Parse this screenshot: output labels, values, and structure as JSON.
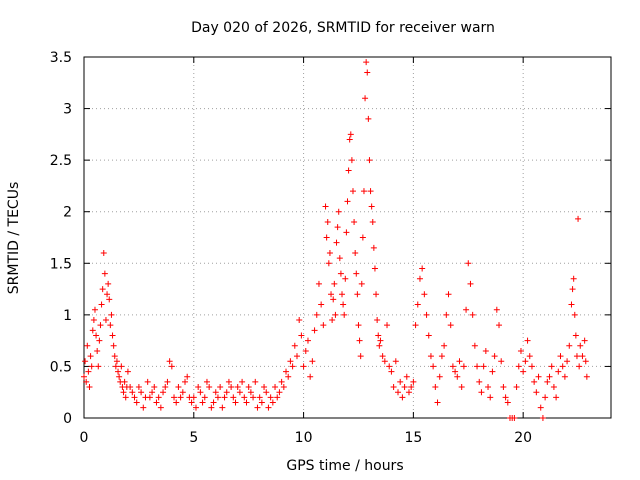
{
  "chart_data": {
    "type": "scatter",
    "title": "Day 020 of 2026, SRMTID for receiver warn",
    "xlabel": "GPS time / hours",
    "ylabel": "SRMTID / TECUs",
    "xlim": [
      0,
      24
    ],
    "ylim": [
      0,
      3.5
    ],
    "xticks": [
      0,
      5,
      10,
      15,
      20
    ],
    "xtick_labels": [
      "0",
      "5",
      "10",
      "15",
      "20"
    ],
    "yticks": [
      0,
      0.5,
      1,
      1.5,
      2,
      2.5,
      3,
      3.5
    ],
    "ytick_labels": [
      "0",
      "0.5",
      "1",
      "1.5",
      "2",
      "2.5",
      "3",
      "3.5"
    ],
    "grid": true,
    "marker": "+",
    "marker_color": "#ff0000",
    "series": [
      {
        "name": "SRMTID",
        "points": [
          [
            0.0,
            0.4
          ],
          [
            0.05,
            0.55
          ],
          [
            0.1,
            0.35
          ],
          [
            0.15,
            0.7
          ],
          [
            0.2,
            0.45
          ],
          [
            0.25,
            0.3
          ],
          [
            0.3,
            0.6
          ],
          [
            0.35,
            0.5
          ],
          [
            0.4,
            0.85
          ],
          [
            0.45,
            0.95
          ],
          [
            0.5,
            1.05
          ],
          [
            0.55,
            0.8
          ],
          [
            0.6,
            0.65
          ],
          [
            0.65,
            0.5
          ],
          [
            0.7,
            0.75
          ],
          [
            0.75,
            0.9
          ],
          [
            0.8,
            1.1
          ],
          [
            0.85,
            1.25
          ],
          [
            0.9,
            1.6
          ],
          [
            0.95,
            1.4
          ],
          [
            1.0,
            0.95
          ],
          [
            1.05,
            1.2
          ],
          [
            1.1,
            1.3
          ],
          [
            1.15,
            1.15
          ],
          [
            1.2,
            0.9
          ],
          [
            1.25,
            1.0
          ],
          [
            1.3,
            0.8
          ],
          [
            1.35,
            0.7
          ],
          [
            1.4,
            0.6
          ],
          [
            1.45,
            0.5
          ],
          [
            1.5,
            0.55
          ],
          [
            1.55,
            0.45
          ],
          [
            1.6,
            0.4
          ],
          [
            1.65,
            0.35
          ],
          [
            1.7,
            0.5
          ],
          [
            1.75,
            0.3
          ],
          [
            1.8,
            0.25
          ],
          [
            1.85,
            0.35
          ],
          [
            1.9,
            0.2
          ],
          [
            1.95,
            0.3
          ],
          [
            2.0,
            0.45
          ],
          [
            2.1,
            0.3
          ],
          [
            2.2,
            0.25
          ],
          [
            2.3,
            0.2
          ],
          [
            2.4,
            0.15
          ],
          [
            2.5,
            0.3
          ],
          [
            2.6,
            0.25
          ],
          [
            2.7,
            0.1
          ],
          [
            2.8,
            0.2
          ],
          [
            2.9,
            0.35
          ],
          [
            3.0,
            0.2
          ],
          [
            3.1,
            0.25
          ],
          [
            3.2,
            0.3
          ],
          [
            3.3,
            0.15
          ],
          [
            3.4,
            0.2
          ],
          [
            3.5,
            0.1
          ],
          [
            3.6,
            0.25
          ],
          [
            3.7,
            0.3
          ],
          [
            3.8,
            0.35
          ],
          [
            3.9,
            0.55
          ],
          [
            4.0,
            0.5
          ],
          [
            4.1,
            0.2
          ],
          [
            4.2,
            0.15
          ],
          [
            4.3,
            0.3
          ],
          [
            4.4,
            0.2
          ],
          [
            4.5,
            0.25
          ],
          [
            4.6,
            0.35
          ],
          [
            4.7,
            0.4
          ],
          [
            4.8,
            0.2
          ],
          [
            4.9,
            0.15
          ],
          [
            5.0,
            0.2
          ],
          [
            5.1,
            0.1
          ],
          [
            5.2,
            0.3
          ],
          [
            5.3,
            0.25
          ],
          [
            5.4,
            0.15
          ],
          [
            5.5,
            0.2
          ],
          [
            5.6,
            0.35
          ],
          [
            5.7,
            0.3
          ],
          [
            5.8,
            0.1
          ],
          [
            5.9,
            0.15
          ],
          [
            6.0,
            0.25
          ],
          [
            6.1,
            0.2
          ],
          [
            6.2,
            0.3
          ],
          [
            6.3,
            0.1
          ],
          [
            6.4,
            0.2
          ],
          [
            6.5,
            0.25
          ],
          [
            6.6,
            0.35
          ],
          [
            6.7,
            0.3
          ],
          [
            6.8,
            0.2
          ],
          [
            6.9,
            0.15
          ],
          [
            7.0,
            0.3
          ],
          [
            7.1,
            0.25
          ],
          [
            7.2,
            0.35
          ],
          [
            7.3,
            0.2
          ],
          [
            7.4,
            0.15
          ],
          [
            7.5,
            0.3
          ],
          [
            7.6,
            0.25
          ],
          [
            7.7,
            0.2
          ],
          [
            7.8,
            0.35
          ],
          [
            7.9,
            0.1
          ],
          [
            8.0,
            0.2
          ],
          [
            8.1,
            0.15
          ],
          [
            8.2,
            0.3
          ],
          [
            8.3,
            0.25
          ],
          [
            8.4,
            0.1
          ],
          [
            8.5,
            0.2
          ],
          [
            8.6,
            0.15
          ],
          [
            8.7,
            0.3
          ],
          [
            8.8,
            0.2
          ],
          [
            8.9,
            0.25
          ],
          [
            9.0,
            0.35
          ],
          [
            9.1,
            0.3
          ],
          [
            9.2,
            0.45
          ],
          [
            9.3,
            0.4
          ],
          [
            9.4,
            0.55
          ],
          [
            9.5,
            0.5
          ],
          [
            9.6,
            0.7
          ],
          [
            9.7,
            0.6
          ],
          [
            9.8,
            0.95
          ],
          [
            9.9,
            0.8
          ],
          [
            10.0,
            0.5
          ],
          [
            10.1,
            0.65
          ],
          [
            10.2,
            0.75
          ],
          [
            10.3,
            0.4
          ],
          [
            10.4,
            0.55
          ],
          [
            10.5,
            0.85
          ],
          [
            10.6,
            1.0
          ],
          [
            10.7,
            1.3
          ],
          [
            10.8,
            1.1
          ],
          [
            10.9,
            0.9
          ],
          [
            11.0,
            2.05
          ],
          [
            11.05,
            1.75
          ],
          [
            11.1,
            1.9
          ],
          [
            11.15,
            1.5
          ],
          [
            11.2,
            1.6
          ],
          [
            11.25,
            1.2
          ],
          [
            11.3,
            0.95
          ],
          [
            11.35,
            1.15
          ],
          [
            11.4,
            1.3
          ],
          [
            11.45,
            1.0
          ],
          [
            11.5,
            1.7
          ],
          [
            11.55,
            1.85
          ],
          [
            11.6,
            2.0
          ],
          [
            11.65,
            1.55
          ],
          [
            11.7,
            1.4
          ],
          [
            11.75,
            1.2
          ],
          [
            11.8,
            1.1
          ],
          [
            11.85,
            1.0
          ],
          [
            11.9,
            1.35
          ],
          [
            11.95,
            1.8
          ],
          [
            12.0,
            2.1
          ],
          [
            12.05,
            2.4
          ],
          [
            12.1,
            2.7
          ],
          [
            12.15,
            2.75
          ],
          [
            12.2,
            2.5
          ],
          [
            12.25,
            2.2
          ],
          [
            12.3,
            1.9
          ],
          [
            12.35,
            1.6
          ],
          [
            12.4,
            1.4
          ],
          [
            12.45,
            1.2
          ],
          [
            12.5,
            0.9
          ],
          [
            12.55,
            0.75
          ],
          [
            12.6,
            0.6
          ],
          [
            12.65,
            1.3
          ],
          [
            12.7,
            1.75
          ],
          [
            12.75,
            2.2
          ],
          [
            12.8,
            3.1
          ],
          [
            12.85,
            3.45
          ],
          [
            12.9,
            3.35
          ],
          [
            12.95,
            2.9
          ],
          [
            13.0,
            2.5
          ],
          [
            13.05,
            2.2
          ],
          [
            13.1,
            2.05
          ],
          [
            13.15,
            1.9
          ],
          [
            13.2,
            1.65
          ],
          [
            13.25,
            1.45
          ],
          [
            13.3,
            1.2
          ],
          [
            13.35,
            0.95
          ],
          [
            13.4,
            0.8
          ],
          [
            13.45,
            0.7
          ],
          [
            13.5,
            0.75
          ],
          [
            13.6,
            0.6
          ],
          [
            13.7,
            0.55
          ],
          [
            13.8,
            0.9
          ],
          [
            13.9,
            0.5
          ],
          [
            14.0,
            0.45
          ],
          [
            14.1,
            0.3
          ],
          [
            14.2,
            0.55
          ],
          [
            14.3,
            0.25
          ],
          [
            14.4,
            0.35
          ],
          [
            14.5,
            0.2
          ],
          [
            14.6,
            0.3
          ],
          [
            14.7,
            0.4
          ],
          [
            14.8,
            0.25
          ],
          [
            14.9,
            0.3
          ],
          [
            15.0,
            0.35
          ],
          [
            15.1,
            0.9
          ],
          [
            15.2,
            1.1
          ],
          [
            15.3,
            1.35
          ],
          [
            15.4,
            1.45
          ],
          [
            15.5,
            1.2
          ],
          [
            15.6,
            1.0
          ],
          [
            15.7,
            0.8
          ],
          [
            15.8,
            0.6
          ],
          [
            15.9,
            0.5
          ],
          [
            16.0,
            0.3
          ],
          [
            16.1,
            0.15
          ],
          [
            16.2,
            0.4
          ],
          [
            16.3,
            0.6
          ],
          [
            16.4,
            0.7
          ],
          [
            16.5,
            1.0
          ],
          [
            16.6,
            1.2
          ],
          [
            16.7,
            0.9
          ],
          [
            16.8,
            0.5
          ],
          [
            16.9,
            0.45
          ],
          [
            17.0,
            0.4
          ],
          [
            17.1,
            0.55
          ],
          [
            17.2,
            0.3
          ],
          [
            17.3,
            0.5
          ],
          [
            17.4,
            1.05
          ],
          [
            17.5,
            1.5
          ],
          [
            17.6,
            1.3
          ],
          [
            17.7,
            1.0
          ],
          [
            17.8,
            0.7
          ],
          [
            17.9,
            0.5
          ],
          [
            18.0,
            0.35
          ],
          [
            18.1,
            0.25
          ],
          [
            18.2,
            0.5
          ],
          [
            18.3,
            0.65
          ],
          [
            18.4,
            0.3
          ],
          [
            18.5,
            0.2
          ],
          [
            18.6,
            0.45
          ],
          [
            18.7,
            0.6
          ],
          [
            18.8,
            1.05
          ],
          [
            18.9,
            0.9
          ],
          [
            19.0,
            0.55
          ],
          [
            19.1,
            0.3
          ],
          [
            19.2,
            0.2
          ],
          [
            19.3,
            0.15
          ],
          [
            19.4,
            0.0
          ],
          [
            19.5,
            0.0
          ],
          [
            19.6,
            0.0
          ],
          [
            19.7,
            0.3
          ],
          [
            19.8,
            0.5
          ],
          [
            19.9,
            0.65
          ],
          [
            20.0,
            0.45
          ],
          [
            20.1,
            0.55
          ],
          [
            20.2,
            0.75
          ],
          [
            20.3,
            0.6
          ],
          [
            20.4,
            0.5
          ],
          [
            20.5,
            0.35
          ],
          [
            20.6,
            0.25
          ],
          [
            20.7,
            0.4
          ],
          [
            20.8,
            0.1
          ],
          [
            20.9,
            0.0
          ],
          [
            21.0,
            0.2
          ],
          [
            21.1,
            0.35
          ],
          [
            21.2,
            0.4
          ],
          [
            21.3,
            0.5
          ],
          [
            21.4,
            0.3
          ],
          [
            21.5,
            0.2
          ],
          [
            21.6,
            0.45
          ],
          [
            21.7,
            0.6
          ],
          [
            21.8,
            0.5
          ],
          [
            21.9,
            0.4
          ],
          [
            22.0,
            0.55
          ],
          [
            22.1,
            0.7
          ],
          [
            22.2,
            1.1
          ],
          [
            22.25,
            1.25
          ],
          [
            22.3,
            1.35
          ],
          [
            22.35,
            1.0
          ],
          [
            22.4,
            0.8
          ],
          [
            22.45,
            0.6
          ],
          [
            22.5,
            1.93
          ],
          [
            22.55,
            0.5
          ],
          [
            22.6,
            0.7
          ],
          [
            22.7,
            0.6
          ],
          [
            22.8,
            0.75
          ],
          [
            22.85,
            0.55
          ],
          [
            22.9,
            0.4
          ]
        ]
      }
    ]
  }
}
